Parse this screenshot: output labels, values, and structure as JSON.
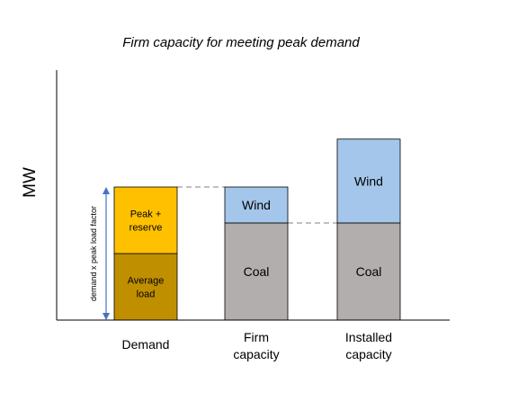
{
  "chart_data": {
    "type": "bar",
    "title": "Firm capacity for meeting peak demand",
    "ylabel": "MW",
    "xlabel": "",
    "ylim": [
      0,
      100
    ],
    "grid": false,
    "categories": [
      "Demand",
      "Firm capacity",
      "Installed capacity"
    ],
    "bars": [
      {
        "category": "Demand",
        "segments": [
          {
            "label": "Average load",
            "value": 50,
            "color": "#C08F00"
          },
          {
            "label": "Peak + reserve",
            "value": 50,
            "color": "#FFC000"
          }
        ]
      },
      {
        "category": "Firm capacity",
        "segments": [
          {
            "label": "Coal",
            "value": 73,
            "color": "#B2AEAE"
          },
          {
            "label": "Wind",
            "value": 27,
            "color": "#A4C6EA"
          }
        ]
      },
      {
        "category": "Installed capacity",
        "segments": [
          {
            "label": "Coal",
            "value": 73,
            "color": "#B2AEAE"
          },
          {
            "label": "Wind",
            "value": 63,
            "color": "#A4C6EA"
          }
        ]
      }
    ],
    "annotations": [
      {
        "text": "demand x peak load factor",
        "type": "double-arrow",
        "from": 0,
        "to": 100,
        "color": "#4472C4"
      }
    ],
    "reference_lines": [
      {
        "value": 100,
        "style": "dashed"
      },
      {
        "value": 73,
        "style": "dashed"
      }
    ]
  }
}
